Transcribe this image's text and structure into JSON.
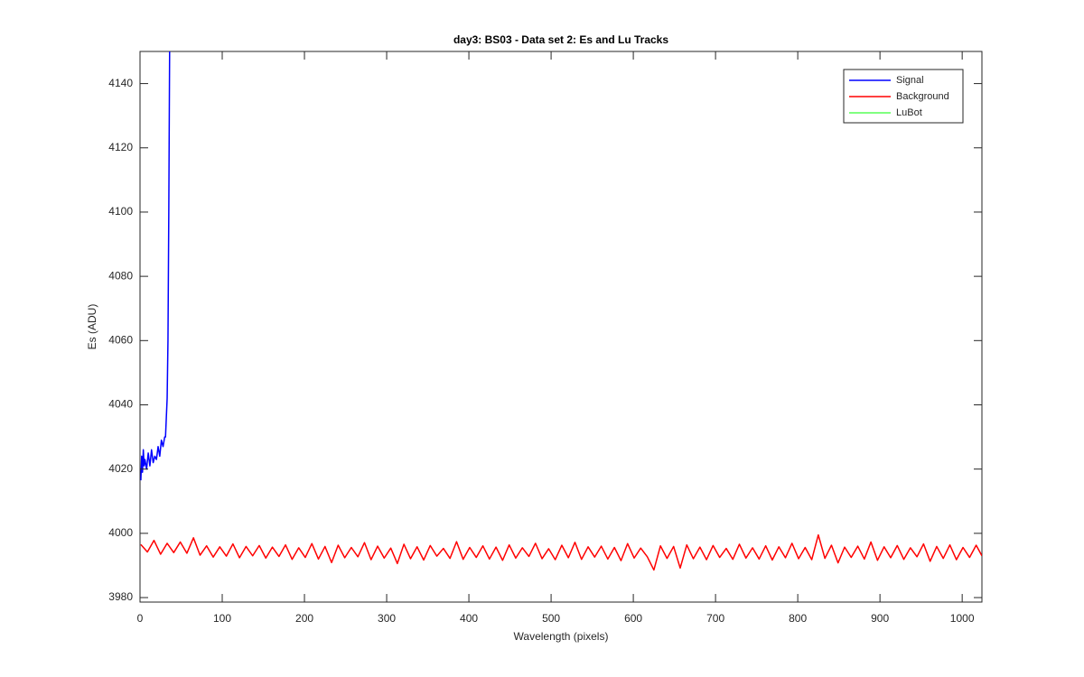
{
  "chart_data": {
    "type": "line",
    "title": "day3: BS03 - Data set 2: Es and Lu Tracks",
    "x_label": "Wavelength (pixels)",
    "y_label": "Es (ADU)",
    "xlim": [
      0,
      1024
    ],
    "ylim": [
      3978.6,
      4150
    ],
    "xticks": [
      0,
      100,
      200,
      300,
      400,
      500,
      600,
      700,
      800,
      900,
      1000
    ],
    "yticks": [
      3980,
      4000,
      4020,
      4040,
      4060,
      4080,
      4100,
      4120,
      4140
    ],
    "legend": "northeast",
    "series": [
      {
        "name": "Signal",
        "color": "#0000ff",
        "x": [
          1,
          2,
          3,
          4,
          5,
          6,
          8,
          10,
          12,
          14,
          16,
          18,
          20,
          22,
          24,
          26,
          28,
          30,
          31,
          32,
          33,
          34,
          35,
          36
        ],
        "values": [
          4016.5,
          4024,
          4019,
          4026,
          4021,
          4023,
          4020,
          4025,
          4021,
          4026,
          4022,
          4024,
          4023,
          4027,
          4024,
          4029,
          4027,
          4030,
          4030,
          4036,
          4042,
          4060,
          4100,
          4150
        ]
      },
      {
        "name": "Background",
        "color": "#ff0000",
        "x": [
          1,
          9,
          17,
          25,
          33,
          41,
          49,
          57,
          65,
          73,
          81,
          89,
          97,
          105,
          113,
          121,
          129,
          137,
          145,
          153,
          161,
          169,
          177,
          185,
          193,
          201,
          209,
          217,
          225,
          233,
          241,
          249,
          257,
          265,
          273,
          281,
          289,
          297,
          305,
          313,
          321,
          329,
          337,
          345,
          353,
          361,
          369,
          377,
          385,
          393,
          401,
          409,
          417,
          425,
          433,
          441,
          449,
          457,
          465,
          473,
          481,
          489,
          497,
          505,
          513,
          521,
          529,
          537,
          545,
          553,
          561,
          569,
          577,
          585,
          593,
          601,
          609,
          617,
          625,
          633,
          641,
          649,
          657,
          665,
          673,
          681,
          689,
          697,
          705,
          713,
          721,
          729,
          737,
          745,
          753,
          761,
          769,
          777,
          785,
          793,
          801,
          809,
          817,
          825,
          833,
          841,
          849,
          857,
          865,
          873,
          881,
          889,
          897,
          905,
          913,
          921,
          929,
          937,
          945,
          953,
          961,
          969,
          977,
          985,
          993,
          1001,
          1009,
          1017,
          1024
        ],
        "values": [
          3996.5,
          3994.2,
          3997.8,
          3993.5,
          3996.9,
          3994.0,
          3997.3,
          3993.8,
          3998.6,
          3993.2,
          3996.1,
          3992.6,
          3995.8,
          3992.9,
          3996.7,
          3992.4,
          3995.9,
          3993.0,
          3996.2,
          3992.3,
          3995.7,
          3992.8,
          3996.4,
          3991.9,
          3995.5,
          3992.5,
          3996.8,
          3992.0,
          3995.9,
          3990.9,
          3996.3,
          3992.4,
          3995.6,
          3992.7,
          3997.1,
          3991.8,
          3996.0,
          3992.3,
          3995.4,
          3990.6,
          3996.6,
          3992.1,
          3995.8,
          3991.7,
          3996.2,
          3992.9,
          3995.3,
          3992.2,
          3997.4,
          3991.9,
          3995.6,
          3992.5,
          3996.1,
          3992.0,
          3995.7,
          3991.6,
          3996.4,
          3992.3,
          3995.5,
          3992.8,
          3996.9,
          3992.1,
          3995.2,
          3991.8,
          3996.3,
          3992.4,
          3997.2,
          3991.9,
          3995.8,
          3992.6,
          3996.0,
          3992.0,
          3995.6,
          3991.5,
          3996.8,
          3992.3,
          3995.4,
          3992.7,
          3988.6,
          3996.1,
          3992.2,
          3995.9,
          3989.2,
          3996.4,
          3992.1,
          3995.7,
          3991.8,
          3996.2,
          3992.5,
          3995.3,
          3991.9,
          3996.6,
          3992.3,
          3995.5,
          3992.0,
          3996.1,
          3991.7,
          3995.8,
          3992.4,
          3996.9,
          3992.1,
          3995.6,
          3991.8,
          3999.5,
          3992.2,
          3996.3,
          3990.8,
          3995.7,
          3992.5,
          3996.0,
          3992.0,
          3997.3,
          3991.6,
          3995.8,
          3992.4,
          3996.2,
          3991.9,
          3995.5,
          3992.7,
          3996.7,
          3991.3,
          3995.9,
          3992.2,
          3996.4,
          3991.8,
          3995.6,
          3992.5,
          3996.3,
          3993.0
        ]
      },
      {
        "name": "LuBot",
        "color": "#00ff00",
        "x": [],
        "values": []
      }
    ]
  }
}
